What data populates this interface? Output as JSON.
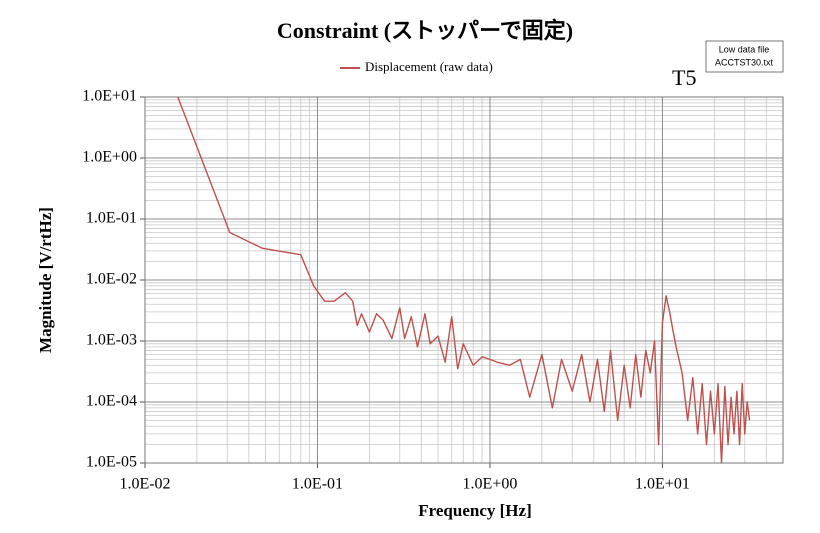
{
  "chart_data": {
    "type": "line",
    "title": "Constraint (ストッパーで固定)",
    "annotation": "T5",
    "file_note": [
      "Low data file",
      "ACCTST30.txt"
    ],
    "xlabel": "Frequency [Hz]",
    "ylabel": "Magnitude [V/rtHz]",
    "xscale": "log",
    "yscale": "log",
    "grid": true,
    "minor_grid": true,
    "legend": "top",
    "xlim": [
      0.01,
      50
    ],
    "ylim": [
      1e-05,
      10
    ],
    "xticks": [
      {
        "value": 0.01,
        "label": "1.0E-02"
      },
      {
        "value": 0.1,
        "label": "1.0E-01"
      },
      {
        "value": 1,
        "label": "1.0E+00"
      },
      {
        "value": 10,
        "label": "1.0E+01"
      }
    ],
    "yticks": [
      {
        "value": 1e-05,
        "label": "1.0E-05"
      },
      {
        "value": 0.0001,
        "label": "1.0E-04"
      },
      {
        "value": 0.001,
        "label": "1.0E-03"
      },
      {
        "value": 0.01,
        "label": "1.0E-02"
      },
      {
        "value": 0.1,
        "label": "1.0E-01"
      },
      {
        "value": 1,
        "label": "1.0E+00"
      },
      {
        "value": 10,
        "label": "1.0E+01"
      }
    ],
    "x": [
      0.0155,
      0.031,
      0.048,
      0.08,
      0.095,
      0.11,
      0.125,
      0.145,
      0.16,
      0.17,
      0.18,
      0.2,
      0.22,
      0.24,
      0.27,
      0.3,
      0.32,
      0.35,
      0.38,
      0.42,
      0.45,
      0.5,
      0.55,
      0.6,
      0.65,
      0.7,
      0.8,
      0.9,
      1.0,
      1.1,
      1.3,
      1.5,
      1.7,
      2.0,
      2.3,
      2.6,
      3.0,
      3.4,
      3.8,
      4.2,
      4.6,
      5.0,
      5.5,
      6.0,
      6.5,
      7.0,
      7.5,
      8.0,
      8.5,
      9.0,
      9.5,
      10.0,
      10.5,
      11.0,
      11.5,
      12.0,
      13,
      14,
      15,
      16,
      17,
      18,
      19,
      20,
      21,
      22,
      23,
      24,
      25,
      26,
      27,
      28,
      29,
      30,
      31,
      32
    ],
    "series": [
      {
        "name": "Displacement (raw data)",
        "color": "#c0504d",
        "values": [
          10,
          0.06,
          0.033,
          0.026,
          0.008,
          0.0045,
          0.0045,
          0.0062,
          0.0045,
          0.0018,
          0.0028,
          0.0014,
          0.0028,
          0.0022,
          0.0011,
          0.0035,
          0.0011,
          0.0025,
          0.0008,
          0.0028,
          0.0009,
          0.0012,
          0.00045,
          0.0025,
          0.00035,
          0.0009,
          0.0004,
          0.00055,
          0.0005,
          0.00045,
          0.0004,
          0.0005,
          0.00012,
          0.0006,
          8e-05,
          0.0005,
          0.00015,
          0.0006,
          0.0001,
          0.0005,
          7e-05,
          0.0007,
          5e-05,
          0.0004,
          8e-05,
          0.0006,
          0.00012,
          0.0007,
          0.0003,
          0.001,
          2e-05,
          0.002,
          0.0055,
          0.003,
          0.0015,
          0.0008,
          0.0003,
          5e-05,
          0.00025,
          3e-05,
          0.0002,
          2e-05,
          0.00015,
          3e-05,
          0.0002,
          1e-05,
          0.00018,
          2e-05,
          0.00012,
          3e-05,
          0.00015,
          2e-05,
          0.0002,
          3e-05,
          0.0001,
          5e-05
        ]
      }
    ]
  }
}
